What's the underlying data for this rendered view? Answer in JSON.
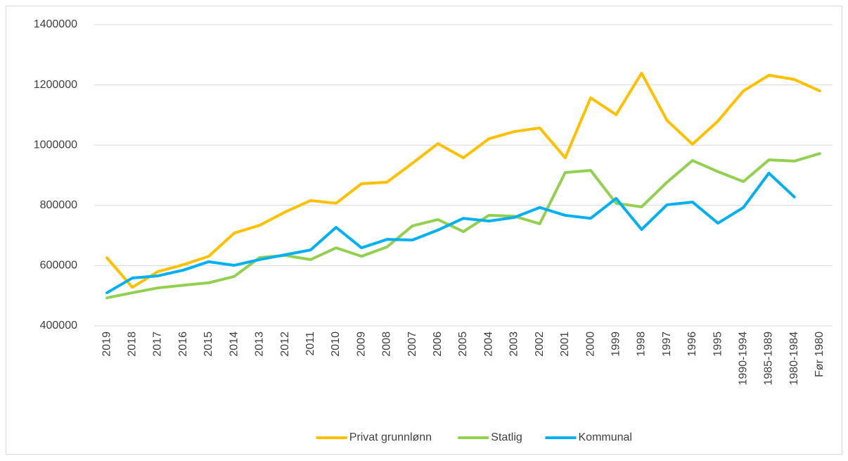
{
  "chart_data": {
    "type": "line",
    "categories": [
      "2019",
      "2018",
      "2017",
      "2016",
      "2015",
      "2014",
      "2013",
      "2012",
      "2011",
      "2010",
      "2009",
      "2008",
      "2007",
      "2006",
      "2005",
      "2004",
      "2003",
      "2002",
      "2001",
      "2000",
      "1999",
      "1998",
      "1997",
      "1996",
      "1995",
      "1990-1994",
      "1985-1989",
      "1980-1984",
      "Før 1980"
    ],
    "series": [
      {
        "name": "Privat grunnlønn",
        "color": "#FFC000",
        "values": [
          626000,
          528000,
          580000,
          603000,
          631000,
          708000,
          734000,
          778000,
          816000,
          807000,
          872000,
          877000,
          940000,
          1005000,
          958000,
          1021000,
          1045000,
          1057000,
          958000,
          1157000,
          1101000,
          1239000,
          1082000,
          1003000,
          1080000,
          1180000,
          1232000,
          1218000,
          1180000
        ]
      },
      {
        "name": "Statlig",
        "color": "#92D050",
        "values": [
          493000,
          510000,
          526000,
          535000,
          543000,
          564000,
          627000,
          634000,
          620000,
          659000,
          631000,
          662000,
          732000,
          753000,
          713000,
          767000,
          764000,
          739000,
          909000,
          916000,
          807000,
          795000,
          877000,
          949000,
          912000,
          879000,
          951000,
          947000,
          972000
        ]
      },
      {
        "name": "Kommunal",
        "color": "#00B0F0",
        "values": [
          510000,
          559000,
          566000,
          585000,
          613000,
          601000,
          620000,
          636000,
          652000,
          727000,
          659000,
          687000,
          685000,
          718000,
          757000,
          748000,
          760000,
          793000,
          767000,
          757000,
          823000,
          720000,
          802000,
          811000,
          741000,
          793000,
          907000,
          828000,
          null
        ]
      }
    ],
    "ylim": [
      400000,
      1400000
    ],
    "yticks": [
      400000,
      600000,
      800000,
      1000000,
      1200000,
      1400000
    ],
    "grid": true,
    "legend": "bottom"
  }
}
